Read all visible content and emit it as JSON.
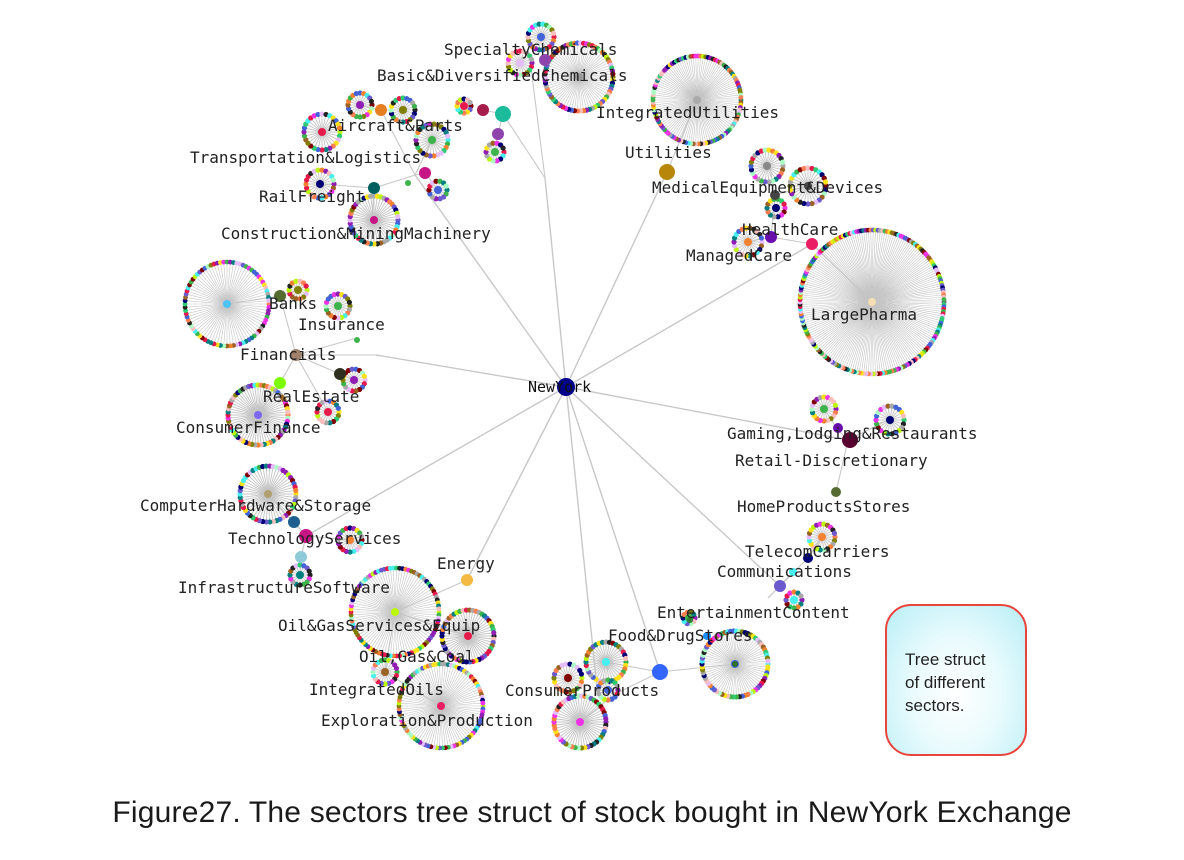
{
  "root": "NewYork",
  "nodes": [
    {
      "name": "SpecialtyChemicals",
      "color": "#8e44ad"
    },
    {
      "name": "Basic&DiversifiedChemicals",
      "color": "#8e44ad"
    },
    {
      "name": "IntegratedUtilities",
      "color": "#b8860b"
    },
    {
      "name": "Utilities",
      "color": "#b8860b"
    },
    {
      "name": "MedicalEquipment&Devices",
      "color": "#444444"
    },
    {
      "name": "HealthCare",
      "color": "#6a0dad"
    },
    {
      "name": "ManagedCare",
      "color": "#e67e22"
    },
    {
      "name": "LargePharma",
      "color": "#f5deb3"
    },
    {
      "name": "Aircraft&Parts",
      "color": "#e67e22"
    },
    {
      "name": "Transportation&Logistics",
      "color": "#1e90ff"
    },
    {
      "name": "RailFreight",
      "color": "#006060"
    },
    {
      "name": "Construction&MiningMachinery",
      "color": "#c71585"
    },
    {
      "name": "Banks",
      "color": "#2e7d32"
    },
    {
      "name": "Insurance",
      "color": "#3cb371"
    },
    {
      "name": "Financials",
      "color": "#a0826d"
    },
    {
      "name": "RealEstate",
      "color": "#2f2f1f"
    },
    {
      "name": "ConsumerFinance",
      "color": "#7b68ee"
    },
    {
      "name": "Gaming,Lodging&Restaurants",
      "color": "#5a0030"
    },
    {
      "name": "Retail-Discretionary",
      "color": "#5a0030"
    },
    {
      "name": "HomeProductsStores",
      "color": "#556b2f"
    },
    {
      "name": "TelecomCarriers",
      "color": "#2e7d32"
    },
    {
      "name": "Communications",
      "color": "#6a5acd"
    },
    {
      "name": "EntertainmentContent",
      "color": "#2f6f2f"
    },
    {
      "name": "Food&DrugStores",
      "color": "#1e90ff"
    },
    {
      "name": "ConsumerProducts",
      "color": "#3366ff"
    },
    {
      "name": "ComputerHardware&Storage",
      "color": "#1f5f8f"
    },
    {
      "name": "TechnologyServices",
      "color": "#c71585"
    },
    {
      "name": "InfrastructureSoftware",
      "color": "#8ecad8"
    },
    {
      "name": "Energy",
      "color": "#f4b942"
    },
    {
      "name": "Oil&GasServices&Equip",
      "color": "#e74c3c"
    },
    {
      "name": "Oil,Gas&Coal",
      "color": "#556b2f"
    },
    {
      "name": "IntegratedOils",
      "color": "#e74c3c"
    },
    {
      "name": "Exploration&Production",
      "color": "#e91e63"
    }
  ],
  "note": {
    "lines": [
      "Tree struct",
      "of different",
      "sectors."
    ]
  },
  "caption": "Figure27. The sectors tree struct of stock bought in NewYork Exchange"
}
